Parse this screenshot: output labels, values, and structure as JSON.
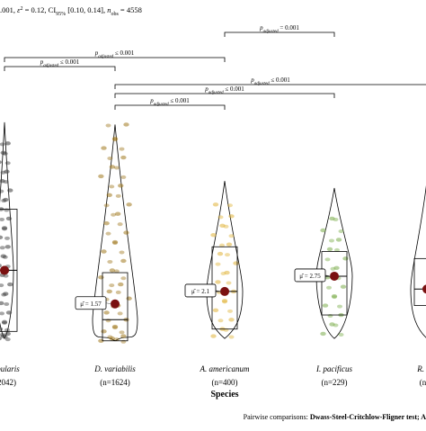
{
  "chart_data": {
    "type": "violin",
    "subtitle": ".001, ε² = 0.12, CI95% [0.10, 0.14], n_obs = 4558",
    "subtitle_parts": [
      {
        "t": ".001, ",
        "s": "n"
      },
      {
        "t": "ε",
        "s": "i"
      },
      {
        "t": "2",
        "s": "sup"
      },
      {
        "t": " = 0.12, CI",
        "s": "n"
      },
      {
        "t": "95%",
        "s": "sub"
      },
      {
        "t": " [0.10, 0.14], ",
        "s": "n"
      },
      {
        "t": "n",
        "s": "i"
      },
      {
        "t": "obs",
        "s": "sub"
      },
      {
        "t": " = 4558",
        "s": "n"
      }
    ],
    "xlabel": "Species",
    "caption_prefix": "Pairwise comparisons: ",
    "caption_bold": "Dwass-Steel-Critchlow-Fligner test; A",
    "categories": [
      {
        "name": "…pularis",
        "n": "=2042)",
        "color": "#3a3a3a",
        "median_label": "",
        "median": 3.0,
        "q1": 0.4,
        "q3": 5.6,
        "mean": 3.0,
        "points": [
          0.1,
          0.2,
          0.3,
          0.5,
          0.8,
          1.2,
          1.6,
          2.0,
          2.4,
          2.8,
          3.0,
          3.2,
          3.6,
          4.0,
          4.4,
          4.8,
          5.2,
          5.6,
          6.0,
          6.4,
          6.8,
          7.2,
          7.6,
          8.0,
          8.4
        ]
      },
      {
        "name": "D. variabilis",
        "n": "(n=1624)",
        "color": "#a0781e",
        "median_label": "μ̂ = 1.57",
        "median": 0.9,
        "q1": 0.0,
        "q3": 2.9,
        "mean": 1.57,
        "points": [
          0.0,
          0.1,
          0.2,
          0.4,
          0.6,
          0.9,
          1.2,
          1.5,
          1.8,
          2.1,
          2.4,
          2.7,
          3.0,
          3.4,
          3.8,
          4.2,
          4.6,
          5.0,
          5.4,
          5.8,
          6.2,
          6.6,
          7.0,
          7.4,
          7.8,
          8.2,
          8.6,
          9.2
        ]
      },
      {
        "name": "A. americanum",
        "n": "(n=400)",
        "color": "#e0b338",
        "median_label": "μ̂ = 2.1",
        "median": 2.1,
        "q1": 0.5,
        "q3": 4.0,
        "mean": 2.1,
        "points": [
          0.2,
          0.5,
          0.9,
          1.3,
          1.7,
          2.1,
          2.5,
          2.9,
          3.3,
          3.7,
          4.1,
          4.5,
          4.9,
          5.3,
          5.8
        ]
      },
      {
        "name": "I. pacificus",
        "n": "(n=229)",
        "color": "#7aac4a",
        "median_label": "μ̂ = 2.75",
        "median": 2.75,
        "q1": 1.1,
        "q3": 3.8,
        "mean": 2.75,
        "points": [
          0.3,
          0.7,
          1.1,
          1.5,
          1.9,
          2.3,
          2.7,
          3.1,
          3.5,
          3.9,
          4.3,
          4.7,
          5.2
        ]
      },
      {
        "name": "R. s…",
        "n": "(n…",
        "color": "#9a9a9a",
        "median_label": "",
        "median": 2.2,
        "q1": 1.5,
        "q3": 3.5,
        "mean": 2.2,
        "points": []
      }
    ],
    "y_range": [
      -0.2,
      9.6
    ],
    "pairwise": [
      {
        "from": 2,
        "to": 3,
        "label": "≤ 0.001"
      },
      {
        "from": 0,
        "to": 2,
        "label": "≤ 0.001"
      },
      {
        "from": 0,
        "to": 1,
        "label": "≤ 0.001"
      },
      {
        "from": 1,
        "to": 4,
        "label": "≤ 0.001"
      },
      {
        "from": 1,
        "to": 3,
        "label": "≤ 0.001"
      },
      {
        "from": 1,
        "to": 2,
        "label": "≤ 0.001"
      }
    ],
    "pairwise_p": "p",
    "pairwise_sub": "adjusted",
    "top_label": "= 0.001",
    "grid": false
  }
}
